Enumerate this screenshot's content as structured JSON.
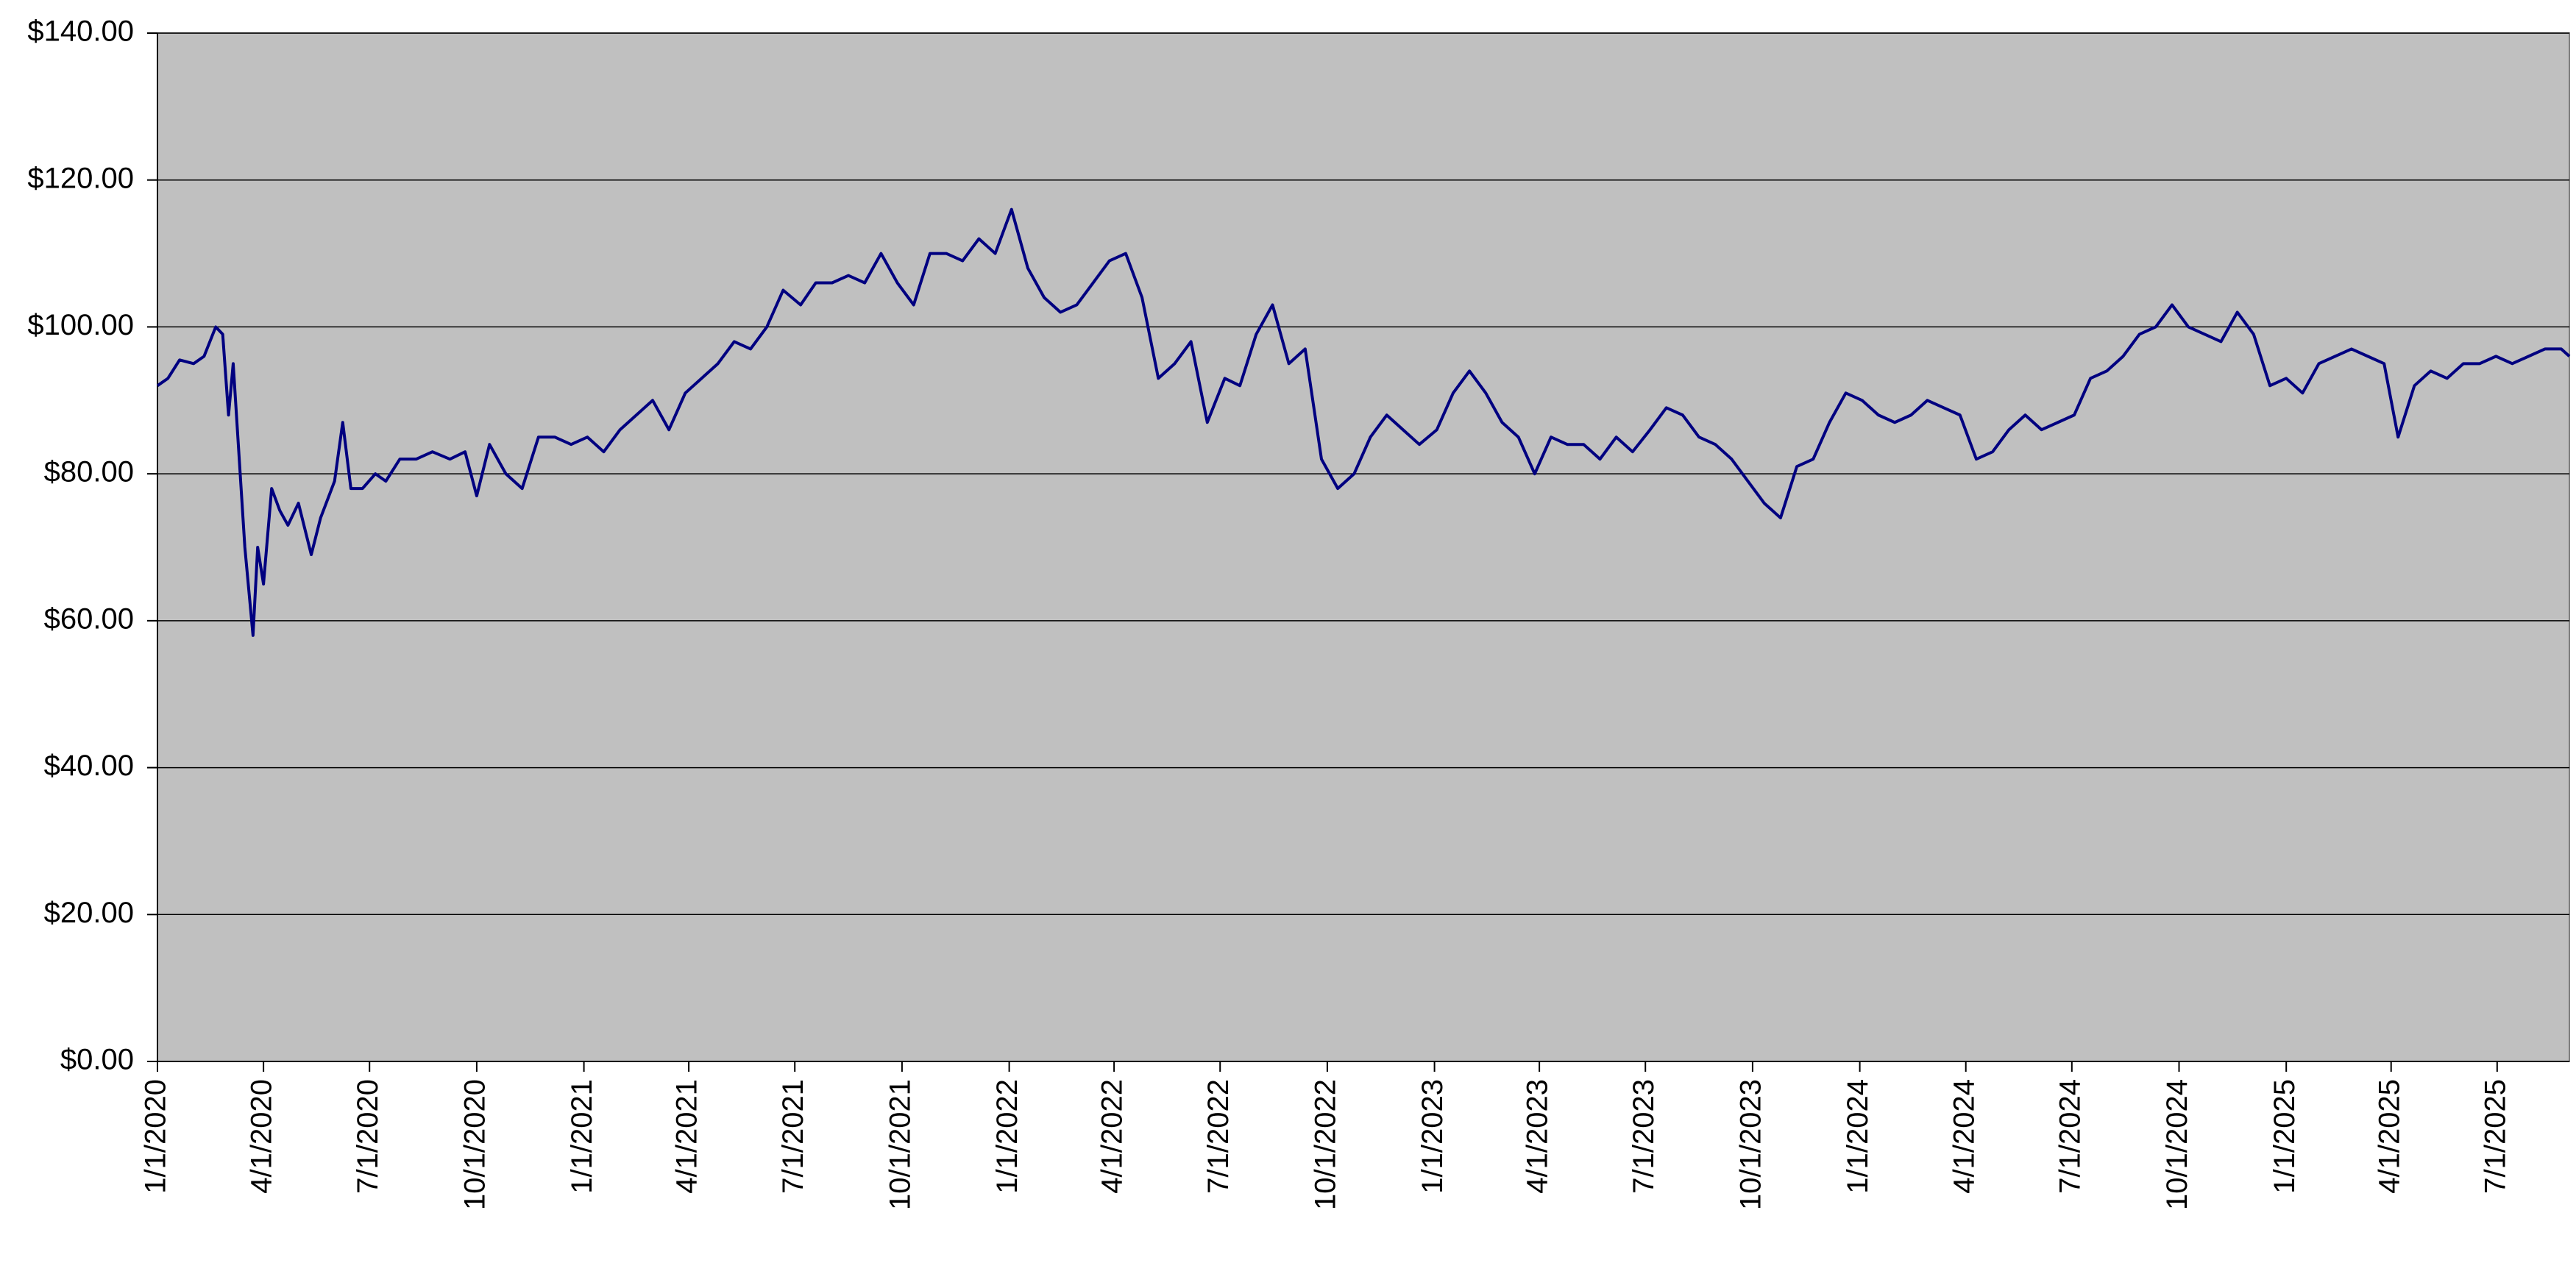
{
  "chart_data": {
    "type": "line",
    "color": "#000080",
    "background": "#c0c0c0",
    "grid": true,
    "ylim": [
      0,
      140
    ],
    "yticks": [
      {
        "value": 0,
        "label": "$0.00"
      },
      {
        "value": 20,
        "label": "$20.00"
      },
      {
        "value": 40,
        "label": "$40.00"
      },
      {
        "value": 60,
        "label": "$60.00"
      },
      {
        "value": 80,
        "label": "$80.00"
      },
      {
        "value": 100,
        "label": "$100.00"
      },
      {
        "value": 120,
        "label": "$120.00"
      },
      {
        "value": 140,
        "label": "$140.00"
      }
    ],
    "xlim": [
      "2020-01-01",
      "2025-09-01"
    ],
    "xticks": [
      {
        "value": "2020-01-01",
        "label": "1/1/2020"
      },
      {
        "value": "2020-04-01",
        "label": "4/1/2020"
      },
      {
        "value": "2020-07-01",
        "label": "7/1/2020"
      },
      {
        "value": "2020-10-01",
        "label": "10/1/2020"
      },
      {
        "value": "2021-01-01",
        "label": "1/1/2021"
      },
      {
        "value": "2021-04-01",
        "label": "4/1/2021"
      },
      {
        "value": "2021-07-01",
        "label": "7/1/2021"
      },
      {
        "value": "2021-10-01",
        "label": "10/1/2021"
      },
      {
        "value": "2022-01-01",
        "label": "1/1/2022"
      },
      {
        "value": "2022-04-01",
        "label": "4/1/2022"
      },
      {
        "value": "2022-07-01",
        "label": "7/1/2022"
      },
      {
        "value": "2022-10-01",
        "label": "10/1/2022"
      },
      {
        "value": "2023-01-01",
        "label": "1/1/2023"
      },
      {
        "value": "2023-04-01",
        "label": "4/1/2023"
      },
      {
        "value": "2023-07-01",
        "label": "7/1/2023"
      },
      {
        "value": "2023-10-01",
        "label": "10/1/2023"
      },
      {
        "value": "2024-01-01",
        "label": "1/1/2024"
      },
      {
        "value": "2024-04-01",
        "label": "4/1/2024"
      },
      {
        "value": "2024-07-01",
        "label": "7/1/2024"
      },
      {
        "value": "2024-10-01",
        "label": "10/1/2024"
      },
      {
        "value": "2025-01-01",
        "label": "1/1/2025"
      },
      {
        "value": "2025-04-01",
        "label": "4/1/2025"
      },
      {
        "value": "2025-07-01",
        "label": "7/1/2025"
      }
    ],
    "x": [
      "2020-01-01",
      "2020-01-10",
      "2020-01-20",
      "2020-02-01",
      "2020-02-10",
      "2020-02-20",
      "2020-02-26",
      "2020-03-02",
      "2020-03-06",
      "2020-03-12",
      "2020-03-16",
      "2020-03-23",
      "2020-03-27",
      "2020-04-01",
      "2020-04-08",
      "2020-04-15",
      "2020-04-22",
      "2020-05-01",
      "2020-05-12",
      "2020-05-20",
      "2020-06-01",
      "2020-06-08",
      "2020-06-15",
      "2020-06-25",
      "2020-07-06",
      "2020-07-15",
      "2020-07-27",
      "2020-08-10",
      "2020-08-24",
      "2020-09-08",
      "2020-09-21",
      "2020-10-01",
      "2020-10-12",
      "2020-10-26",
      "2020-11-09",
      "2020-11-23",
      "2020-12-07",
      "2020-12-21",
      "2021-01-04",
      "2021-01-18",
      "2021-02-01",
      "2021-02-15",
      "2021-03-01",
      "2021-03-15",
      "2021-03-29",
      "2021-04-12",
      "2021-04-26",
      "2021-05-10",
      "2021-05-24",
      "2021-06-07",
      "2021-06-21",
      "2021-07-06",
      "2021-07-19",
      "2021-08-02",
      "2021-08-16",
      "2021-08-30",
      "2021-09-13",
      "2021-09-27",
      "2021-10-11",
      "2021-10-25",
      "2021-11-08",
      "2021-11-22",
      "2021-12-06",
      "2021-12-20",
      "2022-01-03",
      "2022-01-17",
      "2022-01-31",
      "2022-02-14",
      "2022-02-28",
      "2022-03-14",
      "2022-03-28",
      "2022-04-11",
      "2022-04-25",
      "2022-05-09",
      "2022-05-23",
      "2022-06-06",
      "2022-06-20",
      "2022-07-05",
      "2022-07-18",
      "2022-08-01",
      "2022-08-15",
      "2022-08-29",
      "2022-09-12",
      "2022-09-26",
      "2022-10-10",
      "2022-10-24",
      "2022-11-07",
      "2022-11-21",
      "2022-12-05",
      "2022-12-19",
      "2023-01-03",
      "2023-01-17",
      "2023-01-31",
      "2023-02-14",
      "2023-02-28",
      "2023-03-14",
      "2023-03-28",
      "2023-04-11",
      "2023-04-25",
      "2023-05-09",
      "2023-05-23",
      "2023-06-06",
      "2023-06-20",
      "2023-07-05",
      "2023-07-19",
      "2023-08-02",
      "2023-08-16",
      "2023-08-30",
      "2023-09-13",
      "2023-09-27",
      "2023-10-11",
      "2023-10-25",
      "2023-11-08",
      "2023-11-22",
      "2023-12-06",
      "2023-12-20",
      "2024-01-03",
      "2024-01-17",
      "2024-01-31",
      "2024-02-14",
      "2024-02-28",
      "2024-03-13",
      "2024-03-27",
      "2024-04-10",
      "2024-04-24",
      "2024-05-08",
      "2024-05-22",
      "2024-06-05",
      "2024-06-19",
      "2024-07-03",
      "2024-07-17",
      "2024-07-31",
      "2024-08-14",
      "2024-08-28",
      "2024-09-11",
      "2024-09-25",
      "2024-10-09",
      "2024-10-23",
      "2024-11-06",
      "2024-11-20",
      "2024-12-04",
      "2024-12-18",
      "2025-01-01",
      "2025-01-15",
      "2025-01-29",
      "2025-02-12",
      "2025-02-26",
      "2025-03-12",
      "2025-03-26",
      "2025-04-07",
      "2025-04-21",
      "2025-05-05",
      "2025-05-19",
      "2025-06-02",
      "2025-06-16",
      "2025-06-30",
      "2025-07-14",
      "2025-07-28",
      "2025-08-11",
      "2025-08-25",
      "2025-09-01"
    ],
    "values": [
      92,
      93,
      95.5,
      95,
      96,
      100,
      99,
      88,
      95,
      80,
      70,
      58,
      70,
      65,
      78,
      75,
      73,
      76,
      69,
      74,
      79,
      87,
      78,
      78,
      80,
      79,
      82,
      82,
      83,
      82,
      83,
      77,
      84,
      80,
      78,
      85,
      85,
      84,
      85,
      83,
      86,
      88,
      90,
      86,
      91,
      93,
      95,
      98,
      97,
      100,
      105,
      103,
      106,
      106,
      107,
      106,
      110,
      106,
      103,
      110,
      110,
      109,
      112,
      110,
      116,
      108,
      104,
      102,
      103,
      106,
      109,
      110,
      104,
      93,
      95,
      98,
      87,
      93,
      92,
      99,
      103,
      95,
      97,
      82,
      78,
      80,
      85,
      88,
      86,
      84,
      86,
      91,
      94,
      91,
      87,
      85,
      80,
      85,
      84,
      84,
      82,
      85,
      83,
      86,
      89,
      88,
      85,
      84,
      82,
      79,
      76,
      74,
      81,
      82,
      87,
      91,
      90,
      88,
      87,
      88,
      90,
      89,
      88,
      82,
      83,
      86,
      88,
      86,
      87,
      88,
      93,
      94,
      96,
      99,
      100,
      103,
      100,
      99,
      98,
      102,
      99,
      92,
      93,
      91,
      95,
      96,
      97,
      96,
      95,
      85,
      92,
      94,
      93,
      95,
      95,
      96,
      95,
      96,
      97,
      97,
      96
    ]
  }
}
